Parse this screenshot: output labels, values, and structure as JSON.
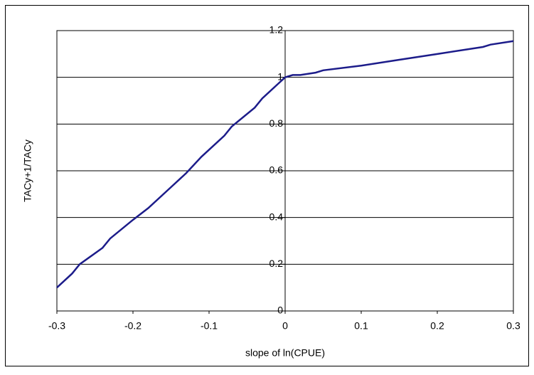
{
  "chart_data": {
    "type": "line",
    "x_label": "slope of ln(CPUE)",
    "y_label": "TACy+1/TACy",
    "xlim": [
      -0.3,
      0.3
    ],
    "xticks": [
      -0.3,
      -0.2,
      -0.1,
      0,
      0.1,
      0.2,
      0.3
    ],
    "ylim": [
      0,
      1.2
    ],
    "yticks": [
      0,
      0.2,
      0.4,
      0.6,
      0.8,
      1,
      1.2
    ],
    "grid": true,
    "series": [
      {
        "color": "#1c1c8a",
        "x": [
          -0.3,
          -0.28,
          -0.27,
          -0.24,
          -0.23,
          -0.2,
          -0.18,
          -0.15,
          -0.13,
          -0.11,
          -0.08,
          -0.07,
          -0.04,
          -0.03,
          -0.01,
          0,
          0.01,
          0.02,
          0.04,
          0.05,
          0.1,
          0.15,
          0.2,
          0.26,
          0.27,
          0.3
        ],
        "values": [
          0.1,
          0.16,
          0.2,
          0.27,
          0.31,
          0.39,
          0.44,
          0.53,
          0.59,
          0.66,
          0.75,
          0.79,
          0.87,
          0.91,
          0.97,
          1.0,
          1.01,
          1.01,
          1.02,
          1.03,
          1.05,
          1.075,
          1.1,
          1.13,
          1.14,
          1.155
        ]
      }
    ]
  }
}
